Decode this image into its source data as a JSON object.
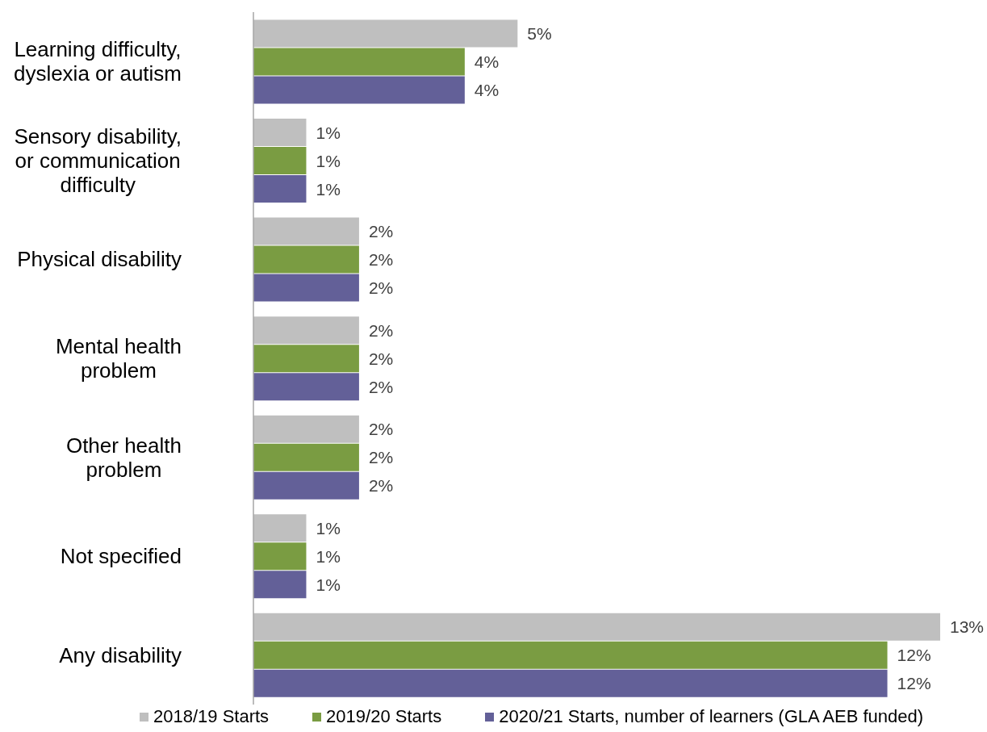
{
  "chart_data": {
    "type": "bar",
    "orientation": "horizontal",
    "categories": [
      "Learning difficulty, dyslexia or autism",
      "Sensory disability, or communication difficulty",
      "Physical disability",
      "Mental health problem",
      "Other health problem",
      "Not specified",
      "Any disability"
    ],
    "series": [
      {
        "name": "2018/19 Starts",
        "color": "#bfbfbf",
        "values": [
          5,
          1,
          2,
          2,
          2,
          1,
          13
        ],
        "value_labels": [
          "5%",
          "1%",
          "2%",
          "2%",
          "2%",
          "1%",
          "13%"
        ]
      },
      {
        "name": "2019/20 Starts",
        "color": "#7a9c42",
        "values": [
          4,
          1,
          2,
          2,
          2,
          1,
          12
        ],
        "value_labels": [
          "4%",
          "1%",
          "2%",
          "2%",
          "2%",
          "1%",
          "12%"
        ]
      },
      {
        "name": "2020/21 Starts, number of learners (GLA AEB funded)",
        "color": "#636098",
        "values": [
          4,
          1,
          2,
          2,
          2,
          1,
          12
        ],
        "value_labels": [
          "4%",
          "1%",
          "2%",
          "2%",
          "2%",
          "1%",
          "12%"
        ]
      }
    ],
    "tick_labels": "y",
    "legend": "bottom"
  }
}
